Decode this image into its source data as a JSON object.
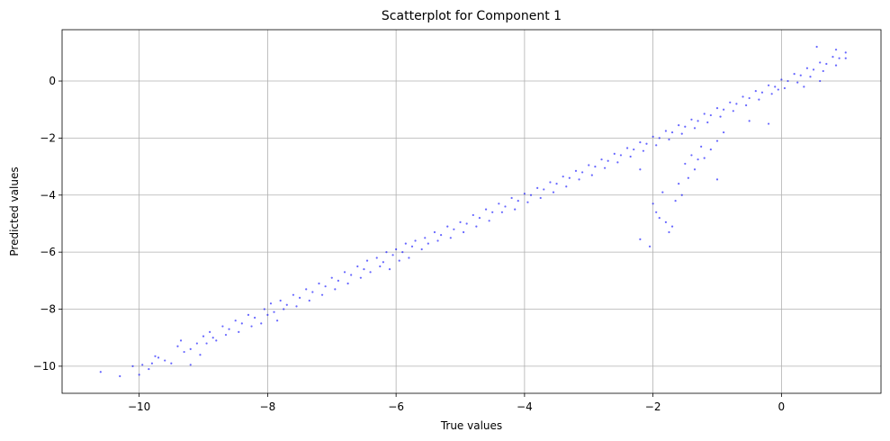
{
  "chart_data": {
    "type": "scatter",
    "title": "Scatterplot for Component 1",
    "xlabel": "True values",
    "ylabel": "Predicted values",
    "xlim": [
      -11.2,
      1.55
    ],
    "ylim": [
      -10.95,
      1.8
    ],
    "xticks": [
      -10,
      -8,
      -6,
      -4,
      -2,
      0
    ],
    "yticks": [
      -10,
      -8,
      -6,
      -4,
      -2,
      0
    ],
    "xtick_labels": [
      "−10",
      "−8",
      "−6",
      "−4",
      "−2",
      "0"
    ],
    "ytick_labels": [
      "−10",
      "−8",
      "−6",
      "−4",
      "−2",
      "0"
    ],
    "grid": true,
    "point_color": "#0000ff",
    "point_alpha": 0.6,
    "series": [
      {
        "points": [
          [
            -10.6,
            -10.2
          ],
          [
            -10.3,
            -10.35
          ],
          [
            -10.1,
            -10.0
          ],
          [
            -10.0,
            -10.3
          ],
          [
            -9.95,
            -9.95
          ],
          [
            -9.85,
            -10.1
          ],
          [
            -9.8,
            -9.9
          ],
          [
            -9.75,
            -9.65
          ],
          [
            -9.7,
            -9.7
          ],
          [
            -9.6,
            -9.8
          ],
          [
            -9.5,
            -9.9
          ],
          [
            -9.4,
            -9.3
          ],
          [
            -9.35,
            -9.1
          ],
          [
            -9.3,
            -9.5
          ],
          [
            -9.2,
            -9.4
          ],
          [
            -9.2,
            -9.95
          ],
          [
            -9.1,
            -9.2
          ],
          [
            -9.05,
            -9.6
          ],
          [
            -9.0,
            -8.95
          ],
          [
            -8.95,
            -9.2
          ],
          [
            -8.9,
            -8.8
          ],
          [
            -8.85,
            -9.0
          ],
          [
            -8.8,
            -9.1
          ],
          [
            -8.7,
            -8.6
          ],
          [
            -8.65,
            -8.9
          ],
          [
            -8.6,
            -8.7
          ],
          [
            -8.5,
            -8.4
          ],
          [
            -8.45,
            -8.8
          ],
          [
            -8.4,
            -8.5
          ],
          [
            -8.3,
            -8.2
          ],
          [
            -8.25,
            -8.6
          ],
          [
            -8.2,
            -8.3
          ],
          [
            -8.1,
            -8.5
          ],
          [
            -8.05,
            -8.0
          ],
          [
            -8.0,
            -8.2
          ],
          [
            -7.95,
            -7.8
          ],
          [
            -7.9,
            -8.1
          ],
          [
            -7.85,
            -8.4
          ],
          [
            -7.8,
            -7.7
          ],
          [
            -7.75,
            -8.0
          ],
          [
            -7.7,
            -7.85
          ],
          [
            -7.6,
            -7.5
          ],
          [
            -7.55,
            -7.9
          ],
          [
            -7.5,
            -7.6
          ],
          [
            -7.4,
            -7.3
          ],
          [
            -7.35,
            -7.7
          ],
          [
            -7.3,
            -7.4
          ],
          [
            -7.2,
            -7.1
          ],
          [
            -7.15,
            -7.5
          ],
          [
            -7.1,
            -7.2
          ],
          [
            -7.0,
            -6.9
          ],
          [
            -6.95,
            -7.3
          ],
          [
            -6.9,
            -7.0
          ],
          [
            -6.8,
            -6.7
          ],
          [
            -6.75,
            -7.1
          ],
          [
            -6.7,
            -6.8
          ],
          [
            -6.6,
            -6.5
          ],
          [
            -6.55,
            -6.9
          ],
          [
            -6.5,
            -6.6
          ],
          [
            -6.45,
            -6.3
          ],
          [
            -6.4,
            -6.7
          ],
          [
            -6.3,
            -6.2
          ],
          [
            -6.25,
            -6.5
          ],
          [
            -6.2,
            -6.35
          ],
          [
            -6.15,
            -6.0
          ],
          [
            -6.1,
            -6.6
          ],
          [
            -6.05,
            -6.1
          ],
          [
            -6.0,
            -5.9
          ],
          [
            -5.95,
            -6.3
          ],
          [
            -5.9,
            -6.0
          ],
          [
            -5.85,
            -5.7
          ],
          [
            -5.8,
            -6.2
          ],
          [
            -5.75,
            -5.8
          ],
          [
            -5.7,
            -5.6
          ],
          [
            -5.6,
            -5.9
          ],
          [
            -5.55,
            -5.5
          ],
          [
            -5.5,
            -5.7
          ],
          [
            -5.4,
            -5.3
          ],
          [
            -5.35,
            -5.6
          ],
          [
            -5.3,
            -5.4
          ],
          [
            -5.2,
            -5.1
          ],
          [
            -5.15,
            -5.5
          ],
          [
            -5.1,
            -5.2
          ],
          [
            -5.0,
            -4.95
          ],
          [
            -4.95,
            -5.3
          ],
          [
            -4.9,
            -5.0
          ],
          [
            -4.8,
            -4.7
          ],
          [
            -4.75,
            -5.1
          ],
          [
            -4.7,
            -4.8
          ],
          [
            -4.6,
            -4.5
          ],
          [
            -4.55,
            -4.9
          ],
          [
            -4.5,
            -4.6
          ],
          [
            -4.4,
            -4.3
          ],
          [
            -4.35,
            -4.6
          ],
          [
            -4.3,
            -4.4
          ],
          [
            -4.2,
            -4.1
          ],
          [
            -4.15,
            -4.5
          ],
          [
            -4.1,
            -4.2
          ],
          [
            -4.0,
            -3.95
          ],
          [
            -3.95,
            -4.25
          ],
          [
            -3.9,
            -4.0
          ],
          [
            -3.8,
            -3.75
          ],
          [
            -3.75,
            -4.1
          ],
          [
            -3.7,
            -3.8
          ],
          [
            -3.6,
            -3.55
          ],
          [
            -3.55,
            -3.9
          ],
          [
            -3.5,
            -3.6
          ],
          [
            -3.4,
            -3.35
          ],
          [
            -3.35,
            -3.7
          ],
          [
            -3.3,
            -3.4
          ],
          [
            -3.2,
            -3.15
          ],
          [
            -3.15,
            -3.45
          ],
          [
            -3.1,
            -3.2
          ],
          [
            -3.0,
            -2.95
          ],
          [
            -2.95,
            -3.3
          ],
          [
            -2.9,
            -3.0
          ],
          [
            -2.8,
            -2.75
          ],
          [
            -2.75,
            -3.05
          ],
          [
            -2.7,
            -2.8
          ],
          [
            -2.6,
            -2.55
          ],
          [
            -2.55,
            -2.85
          ],
          [
            -2.5,
            -2.6
          ],
          [
            -2.4,
            -2.35
          ],
          [
            -2.35,
            -2.65
          ],
          [
            -2.3,
            -2.4
          ],
          [
            -2.2,
            -2.15
          ],
          [
            -2.15,
            -2.45
          ],
          [
            -2.1,
            -2.2
          ],
          [
            -2.0,
            -1.95
          ],
          [
            -1.95,
            -2.25
          ],
          [
            -1.9,
            -2.0
          ],
          [
            -1.8,
            -1.75
          ],
          [
            -1.75,
            -2.05
          ],
          [
            -1.7,
            -1.8
          ],
          [
            -1.6,
            -1.55
          ],
          [
            -1.55,
            -1.85
          ],
          [
            -1.5,
            -1.6
          ],
          [
            -1.4,
            -1.35
          ],
          [
            -1.35,
            -1.65
          ],
          [
            -1.3,
            -1.4
          ],
          [
            -1.2,
            -1.15
          ],
          [
            -1.15,
            -1.45
          ],
          [
            -1.1,
            -1.2
          ],
          [
            -1.0,
            -0.95
          ],
          [
            -0.95,
            -1.25
          ],
          [
            -0.9,
            -1.0
          ],
          [
            -0.8,
            -0.75
          ],
          [
            -0.75,
            -1.05
          ],
          [
            -0.7,
            -0.8
          ],
          [
            -0.6,
            -0.55
          ],
          [
            -0.55,
            -0.85
          ],
          [
            -0.5,
            -0.6
          ],
          [
            -0.4,
            -0.35
          ],
          [
            -0.35,
            -0.65
          ],
          [
            -0.3,
            -0.4
          ],
          [
            -0.2,
            -0.15
          ],
          [
            -0.15,
            -0.45
          ],
          [
            -0.1,
            -0.2
          ],
          [
            0.0,
            0.05
          ],
          [
            0.05,
            -0.25
          ],
          [
            0.1,
            0.0
          ],
          [
            0.2,
            0.25
          ],
          [
            0.25,
            -0.05
          ],
          [
            0.3,
            0.2
          ],
          [
            0.4,
            0.45
          ],
          [
            0.45,
            0.15
          ],
          [
            0.5,
            0.4
          ],
          [
            0.6,
            0.65
          ],
          [
            0.65,
            0.35
          ],
          [
            0.7,
            0.6
          ],
          [
            0.8,
            0.85
          ],
          [
            0.85,
            0.55
          ],
          [
            0.9,
            0.8
          ],
          [
            1.0,
            1.0
          ],
          [
            1.0,
            0.8
          ],
          [
            0.55,
            1.2
          ],
          [
            0.85,
            1.1
          ],
          [
            -0.2,
            -1.5
          ],
          [
            -0.05,
            -0.3
          ],
          [
            0.35,
            -0.2
          ],
          [
            0.6,
            0.0
          ],
          [
            -0.5,
            -1.4
          ],
          [
            -2.2,
            -3.1
          ],
          [
            -2.2,
            -5.55
          ],
          [
            -2.05,
            -5.8
          ],
          [
            -2.0,
            -4.3
          ],
          [
            -1.95,
            -4.6
          ],
          [
            -1.9,
            -4.8
          ],
          [
            -1.85,
            -3.9
          ],
          [
            -1.8,
            -4.95
          ],
          [
            -1.75,
            -5.3
          ],
          [
            -1.7,
            -5.1
          ],
          [
            -1.65,
            -4.2
          ],
          [
            -1.6,
            -3.6
          ],
          [
            -1.55,
            -4.0
          ],
          [
            -1.5,
            -2.9
          ],
          [
            -1.45,
            -3.4
          ],
          [
            -1.4,
            -2.6
          ],
          [
            -1.35,
            -3.1
          ],
          [
            -1.3,
            -2.75
          ],
          [
            -1.25,
            -2.3
          ],
          [
            -1.2,
            -2.7
          ],
          [
            -1.1,
            -2.4
          ],
          [
            -1.0,
            -3.45
          ],
          [
            -0.9,
            -1.8
          ],
          [
            -1.0,
            -2.1
          ]
        ]
      }
    ]
  }
}
